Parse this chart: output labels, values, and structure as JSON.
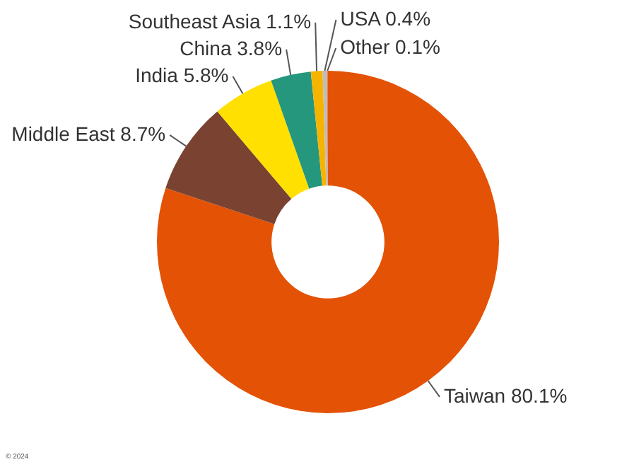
{
  "chart_data": {
    "type": "donut",
    "categories": [
      "Taiwan",
      "Middle East",
      "India",
      "China",
      "Southeast Asia",
      "USA",
      "Other"
    ],
    "values": [
      80.1,
      8.7,
      5.8,
      3.8,
      1.1,
      0.4,
      0.1
    ],
    "colors": [
      "#e35205",
      "#7a4230",
      "#ffe000",
      "#25977c",
      "#f6b400",
      "#bdbdbd",
      "#e8804a"
    ],
    "value_labels": [
      "80.1%",
      "8.7%",
      "5.8%",
      "3.8%",
      "1.1%",
      "0.4%",
      "0.1%"
    ],
    "legend": false,
    "annotations": [
      "© 2024"
    ]
  }
}
